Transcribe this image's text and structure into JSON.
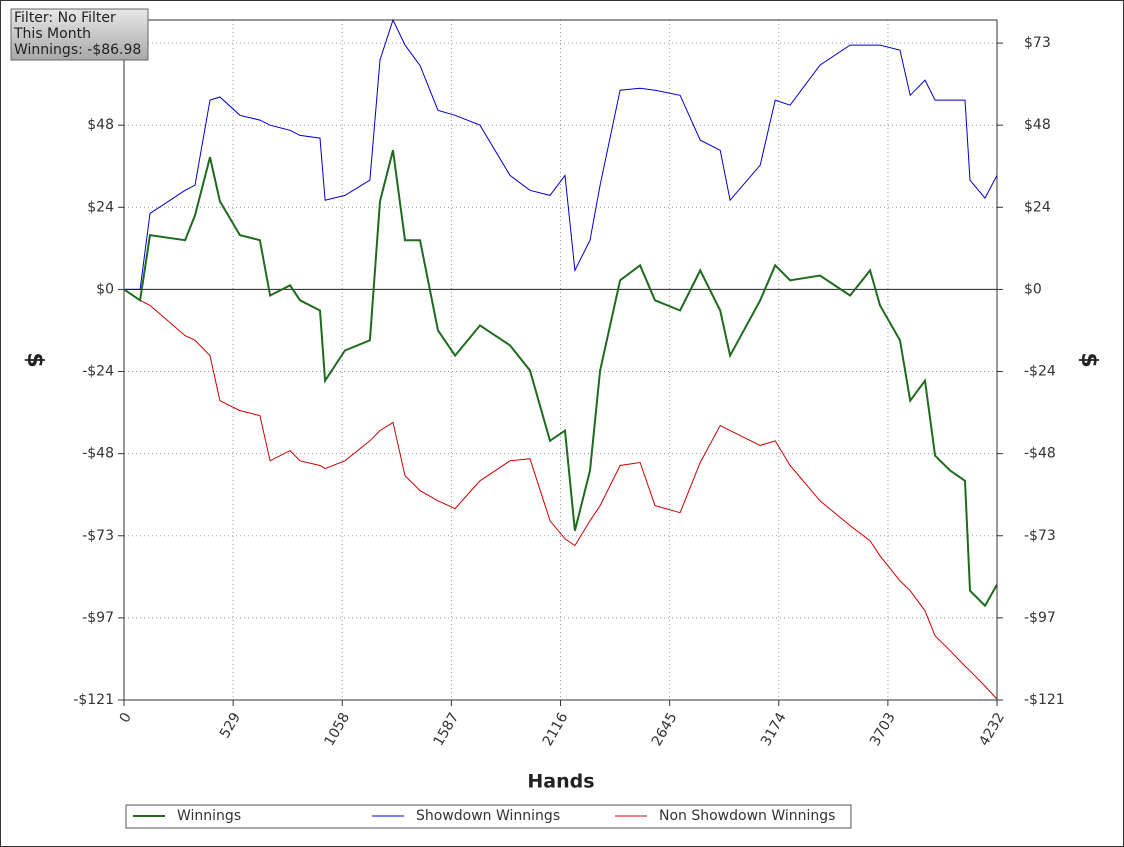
{
  "chart_data": {
    "type": "line",
    "annotations": [
      "Filter: No Filter",
      "This Month",
      "Winnings: -$86.98"
    ],
    "xlabel": "Hands",
    "ylabel": "$",
    "y2label": "$",
    "x": [
      0,
      78,
      126,
      296,
      344,
      417,
      465,
      562,
      659,
      708,
      805,
      853,
      950,
      975,
      1071,
      1192,
      1241,
      1304,
      1362,
      1435,
      1522,
      1605,
      1726,
      1871,
      1968,
      2065,
      2138,
      2186,
      2259,
      2308,
      2405,
      2502,
      2574,
      2696,
      2793,
      2890,
      2938,
      3084,
      3157,
      3229,
      3374,
      3520,
      3617,
      3665,
      3762,
      3811,
      3883,
      3932,
      4005,
      4077,
      4101,
      4174,
      4232
    ],
    "series": [
      {
        "name": "Winnings",
        "color": "#1e6b1e",
        "values": [
          0,
          -3.2,
          16,
          14.5,
          21.8,
          39,
          26,
          16,
          14.5,
          -1.8,
          1.2,
          -3.2,
          -6.2,
          -26.9,
          -18,
          -15,
          26,
          41,
          14.5,
          14.5,
          -12.1,
          -19.5,
          -10.6,
          -16.5,
          -23.9,
          -44.6,
          -41.6,
          -71.1,
          -53.4,
          -23.9,
          2.7,
          7.1,
          -3.2,
          -6.2,
          5.6,
          -6.2,
          -19.5,
          -3.2,
          7.1,
          2.7,
          4.1,
          -1.8,
          5.6,
          -4.7,
          -15,
          -32.8,
          -26.9,
          -49,
          -53.4,
          -56.4,
          -88.8,
          -93.2,
          -86.98
        ]
      },
      {
        "name": "Showdown Winnings",
        "color": "#0000cc",
        "values": [
          0,
          0,
          22.4,
          29.2,
          30.7,
          55.8,
          56.7,
          51.3,
          49.9,
          48.4,
          46.9,
          45.4,
          44.6,
          26.3,
          27.7,
          32.2,
          67.6,
          79.4,
          72,
          66,
          52.8,
          51.3,
          48.4,
          33.6,
          29.2,
          27.7,
          33.6,
          5.6,
          14.5,
          30.7,
          58.7,
          59.3,
          58.7,
          57.2,
          44,
          41,
          26.3,
          36.6,
          55.8,
          54.3,
          66.1,
          72,
          72,
          72,
          70.5,
          57.2,
          61.7,
          55.8,
          55.8,
          55.8,
          32.2,
          26.9,
          33.6
        ]
      },
      {
        "name": "Non Showdown Winnings",
        "color": "#cc0000",
        "values": [
          0,
          -3.2,
          -4.7,
          -13.6,
          -15,
          -19.5,
          -32.8,
          -35.7,
          -37.2,
          -50.5,
          -47.5,
          -50.5,
          -51.9,
          -52.8,
          -50.5,
          -44.6,
          -41.6,
          -39.2,
          -54.9,
          -59.3,
          -62.3,
          -64.6,
          -56.4,
          -50.5,
          -49.9,
          -68.2,
          -73.5,
          -75.5,
          -68.2,
          -63.7,
          -51.9,
          -51,
          -63.7,
          -65.8,
          -51,
          -40.1,
          -41.6,
          -46,
          -44.6,
          -51.9,
          -62.3,
          -69.6,
          -74.1,
          -78.5,
          -85.9,
          -88.8,
          -94.7,
          -102.1,
          -106.5,
          -111,
          -112.4,
          -116.9,
          -120.7
        ]
      }
    ],
    "xlim": [
      0,
      4232
    ],
    "xticks": [
      0,
      529,
      1058,
      1587,
      2116,
      2645,
      3174,
      3703,
      4232
    ],
    "ylim": [
      -121,
      79.4
    ],
    "yticks": [
      {
        "value": 72.6,
        "label": "$73"
      },
      {
        "value": 48.4,
        "label": "$48"
      },
      {
        "value": 24.2,
        "label": "$24"
      },
      {
        "value": 0,
        "label": "$0"
      },
      {
        "value": -24.2,
        "label": "-$24"
      },
      {
        "value": -48.4,
        "label": "-$48"
      },
      {
        "value": -72.6,
        "label": "-$73"
      },
      {
        "value": -96.8,
        "label": "-$97"
      },
      {
        "value": -121,
        "label": "-$121"
      }
    ],
    "y2lim": [
      -121,
      79.4
    ],
    "y2ticks": [
      {
        "value": 72.6,
        "label": "$73"
      },
      {
        "value": 48.4,
        "label": "$48"
      },
      {
        "value": 24.2,
        "label": "$24"
      },
      {
        "value": 0,
        "label": "$0"
      },
      {
        "value": -24.2,
        "label": "-$24"
      },
      {
        "value": -48.4,
        "label": "-$48"
      },
      {
        "value": -72.6,
        "label": "-$73"
      },
      {
        "value": -96.8,
        "label": "-$97"
      },
      {
        "value": -121,
        "label": "-$121"
      }
    ],
    "grid": true
  }
}
